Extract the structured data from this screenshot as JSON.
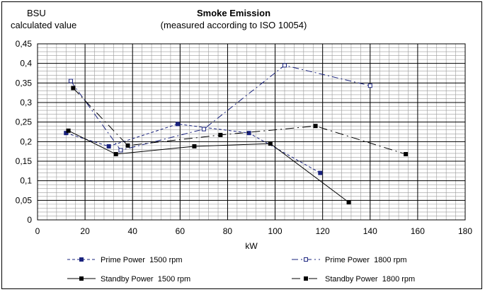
{
  "chart_data": {
    "type": "line",
    "title": "Smoke Emission",
    "subtitle": "(measured according to ISO 10054)",
    "ylabel": [
      "BSU",
      "calculated value"
    ],
    "xlabel": "kW",
    "xlim": [
      0,
      180
    ],
    "ylim": [
      0,
      0.45
    ],
    "xticks": [
      0,
      20,
      40,
      60,
      80,
      100,
      120,
      140,
      160,
      180
    ],
    "yticks": [
      "0",
      "0,05",
      "0,1",
      "0,15",
      "0,2",
      "0,25",
      "0,3",
      "0,35",
      "0,4",
      "0,45"
    ],
    "ytick_values": [
      0,
      0.05,
      0.1,
      0.15,
      0.2,
      0.25,
      0.3,
      0.35,
      0.4,
      0.45
    ],
    "grid": true,
    "legend_position": "bottom",
    "series": [
      {
        "name": "Prime Power  1500 rpm",
        "line": "dashed",
        "marker": "filled-square",
        "color": "#1a237e",
        "x": [
          12,
          30,
          59,
          89,
          119
        ],
        "y": [
          0.222,
          0.188,
          0.245,
          0.222,
          0.12
        ]
      },
      {
        "name": "Prime Power  1800 rpm",
        "line": "dash-dot",
        "marker": "open-square",
        "color": "#1a237e",
        "x": [
          14,
          35,
          70,
          104,
          140
        ],
        "y": [
          0.355,
          0.178,
          0.232,
          0.395,
          0.343
        ]
      },
      {
        "name": "Standby Power  1500 rpm",
        "line": "solid",
        "marker": "filled-square",
        "color": "#000000",
        "x": [
          13,
          33,
          66,
          98,
          131
        ],
        "y": [
          0.228,
          0.168,
          0.188,
          0.195,
          0.045
        ]
      },
      {
        "name": "Standby Power  1800 rpm",
        "line": "long-dash-dot",
        "marker": "filled-square",
        "color": "#000000",
        "x": [
          15,
          38,
          77,
          117,
          155
        ],
        "y": [
          0.337,
          0.19,
          0.217,
          0.24,
          0.168
        ]
      }
    ]
  }
}
